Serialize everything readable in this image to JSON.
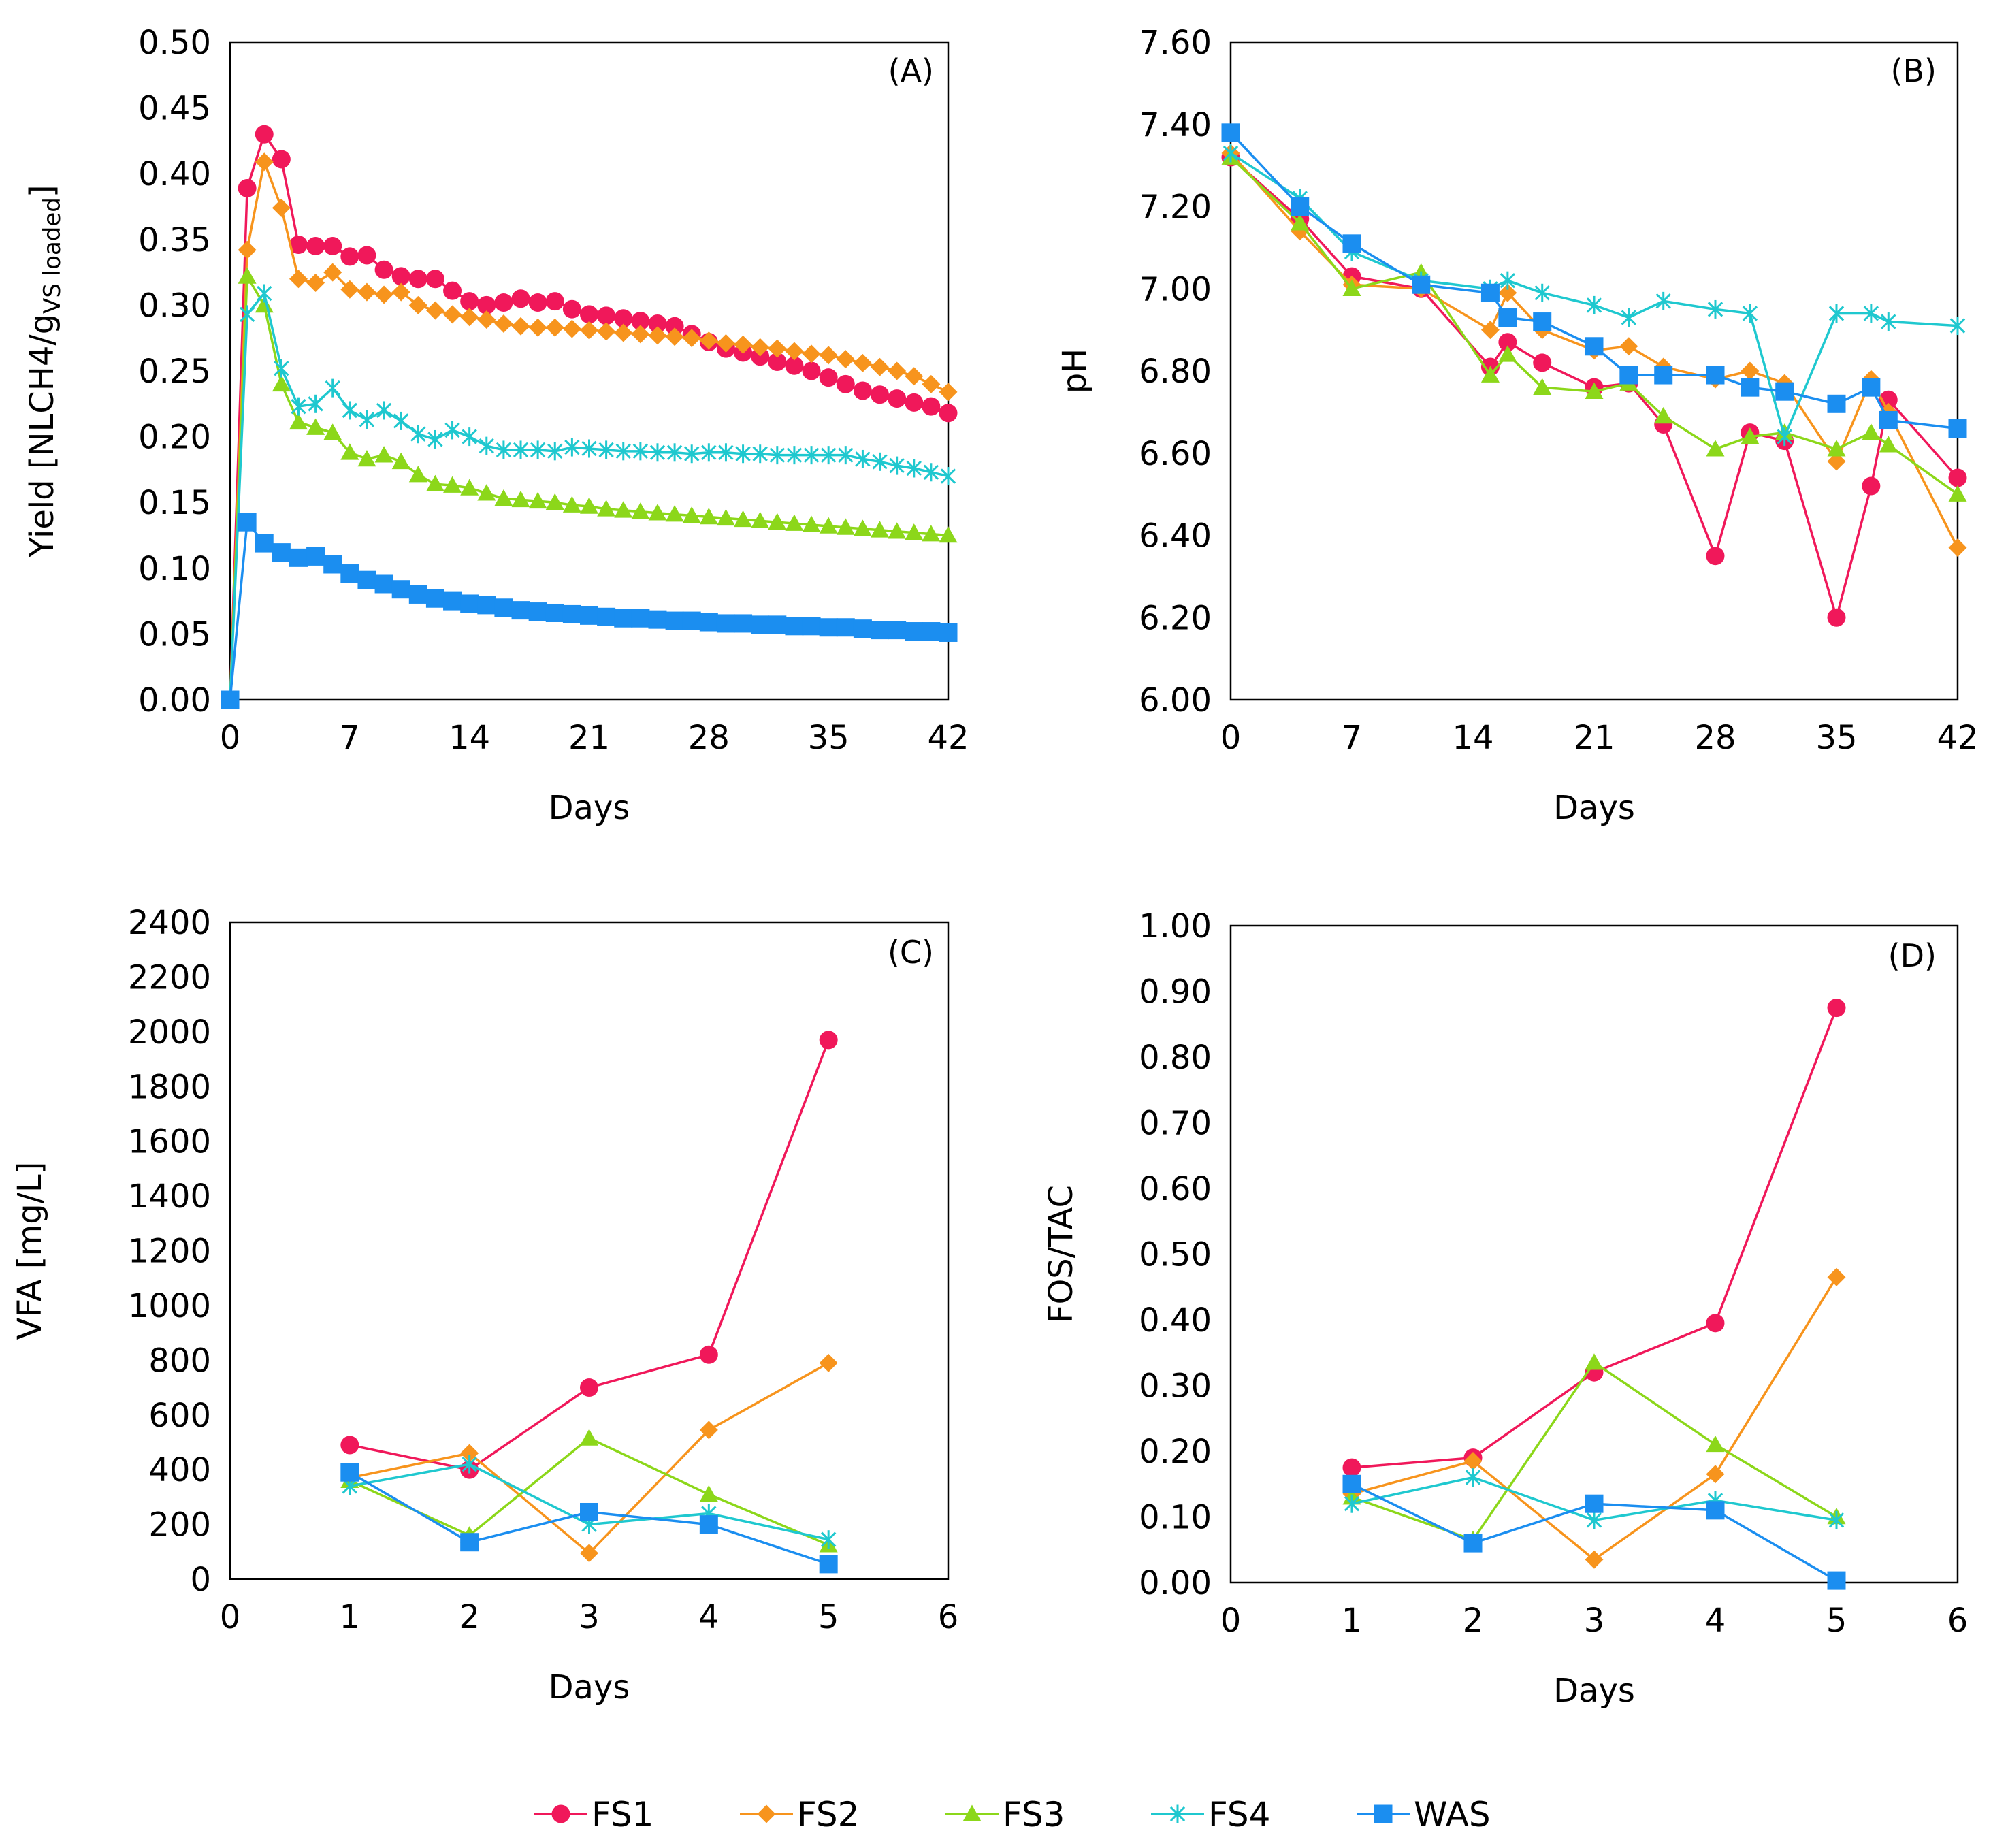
{
  "colors": {
    "FS1": "#f0185a",
    "FS2": "#f7941d",
    "FS3": "#8cd71a",
    "FS4": "#1fc8cf",
    "WAS": "#1b8ef0"
  },
  "legend": [
    {
      "name": "FS1",
      "marker": "circle"
    },
    {
      "name": "FS2",
      "marker": "diamond"
    },
    {
      "name": "FS3",
      "marker": "triangle"
    },
    {
      "name": "FS4",
      "marker": "star"
    },
    {
      "name": "WAS",
      "marker": "square"
    }
  ],
  "chart_data": [
    {
      "id": "A",
      "type": "line",
      "panel_label": "(A)",
      "xlabel": "Days",
      "ylabel_main": "Yield [NLCH4/g",
      "ylabel_sub": "VS loaded",
      "ylabel_end": "]",
      "xlim": [
        0,
        42
      ],
      "ylim": [
        0,
        0.5
      ],
      "xticks": [
        "0",
        "7",
        "14",
        "21",
        "28",
        "35",
        "42"
      ],
      "yticks": [
        "0.00",
        "0.05",
        "0.10",
        "0.15",
        "0.20",
        "0.25",
        "0.30",
        "0.35",
        "0.40",
        "0.45",
        "0.50"
      ],
      "series": [
        {
          "name": "FS1",
          "x": [
            0,
            1,
            2,
            3,
            4,
            5,
            6,
            7,
            8,
            9,
            10,
            11,
            12,
            13,
            14,
            15,
            16,
            17,
            18,
            19,
            20,
            21,
            22,
            23,
            24,
            25,
            26,
            27,
            28,
            29,
            30,
            31,
            32,
            33,
            34,
            35,
            36,
            37,
            38,
            39,
            40,
            41,
            42
          ],
          "y": [
            0,
            0.389,
            0.43,
            0.411,
            0.346,
            0.345,
            0.345,
            0.337,
            0.338,
            0.327,
            0.322,
            0.32,
            0.32,
            0.311,
            0.303,
            0.3,
            0.302,
            0.305,
            0.302,
            0.303,
            0.297,
            0.293,
            0.292,
            0.29,
            0.288,
            0.286,
            0.284,
            0.278,
            0.272,
            0.267,
            0.264,
            0.261,
            0.257,
            0.254,
            0.25,
            0.245,
            0.24,
            0.235,
            0.232,
            0.229,
            0.226,
            0.223,
            0.218
          ]
        },
        {
          "name": "FS2",
          "x": [
            0,
            1,
            2,
            3,
            4,
            5,
            6,
            7,
            8,
            9,
            10,
            11,
            12,
            13,
            14,
            15,
            16,
            17,
            18,
            19,
            20,
            21,
            22,
            23,
            24,
            25,
            26,
            27,
            28,
            29,
            30,
            31,
            32,
            33,
            34,
            35,
            36,
            37,
            38,
            39,
            40,
            41,
            42
          ],
          "y": [
            0,
            0.342,
            0.409,
            0.374,
            0.32,
            0.317,
            0.325,
            0.312,
            0.31,
            0.308,
            0.31,
            0.3,
            0.296,
            0.293,
            0.291,
            0.289,
            0.286,
            0.284,
            0.283,
            0.283,
            0.282,
            0.281,
            0.28,
            0.279,
            0.278,
            0.277,
            0.276,
            0.275,
            0.273,
            0.271,
            0.27,
            0.268,
            0.267,
            0.265,
            0.263,
            0.262,
            0.259,
            0.256,
            0.253,
            0.25,
            0.246,
            0.24,
            0.234
          ]
        },
        {
          "name": "FS3",
          "x": [
            0,
            1,
            2,
            3,
            4,
            5,
            6,
            7,
            8,
            9,
            10,
            11,
            12,
            13,
            14,
            15,
            16,
            17,
            18,
            19,
            20,
            21,
            22,
            23,
            24,
            25,
            26,
            27,
            28,
            29,
            30,
            31,
            32,
            33,
            34,
            35,
            36,
            37,
            38,
            39,
            40,
            41,
            42
          ],
          "y": [
            0,
            0.322,
            0.3,
            0.24,
            0.211,
            0.207,
            0.203,
            0.188,
            0.183,
            0.186,
            0.181,
            0.171,
            0.164,
            0.163,
            0.161,
            0.157,
            0.153,
            0.152,
            0.151,
            0.15,
            0.148,
            0.147,
            0.145,
            0.144,
            0.143,
            0.142,
            0.141,
            0.14,
            0.139,
            0.138,
            0.137,
            0.136,
            0.135,
            0.134,
            0.133,
            0.132,
            0.131,
            0.13,
            0.129,
            0.128,
            0.127,
            0.126,
            0.125
          ]
        },
        {
          "name": "FS4",
          "x": [
            0,
            1,
            2,
            3,
            4,
            5,
            6,
            7,
            8,
            9,
            10,
            11,
            12,
            13,
            14,
            15,
            16,
            17,
            18,
            19,
            20,
            21,
            22,
            23,
            24,
            25,
            26,
            27,
            28,
            29,
            30,
            31,
            32,
            33,
            34,
            35,
            36,
            37,
            38,
            39,
            40,
            41,
            42
          ],
          "y": [
            0,
            0.293,
            0.309,
            0.252,
            0.223,
            0.225,
            0.237,
            0.22,
            0.213,
            0.22,
            0.212,
            0.202,
            0.198,
            0.205,
            0.2,
            0.193,
            0.19,
            0.19,
            0.19,
            0.189,
            0.192,
            0.191,
            0.19,
            0.189,
            0.189,
            0.188,
            0.188,
            0.187,
            0.188,
            0.188,
            0.187,
            0.187,
            0.186,
            0.186,
            0.186,
            0.186,
            0.186,
            0.183,
            0.181,
            0.178,
            0.176,
            0.173,
            0.17
          ]
        },
        {
          "name": "WAS",
          "x": [
            0,
            1,
            2,
            3,
            4,
            5,
            6,
            7,
            8,
            9,
            10,
            11,
            12,
            13,
            14,
            15,
            16,
            17,
            18,
            19,
            20,
            21,
            22,
            23,
            24,
            25,
            26,
            27,
            28,
            29,
            30,
            31,
            32,
            33,
            34,
            35,
            36,
            37,
            38,
            39,
            40,
            41,
            42
          ],
          "y": [
            0,
            0.135,
            0.119,
            0.112,
            0.108,
            0.109,
            0.103,
            0.096,
            0.091,
            0.088,
            0.084,
            0.08,
            0.077,
            0.075,
            0.073,
            0.072,
            0.07,
            0.068,
            0.067,
            0.066,
            0.065,
            0.064,
            0.063,
            0.062,
            0.062,
            0.061,
            0.06,
            0.06,
            0.059,
            0.058,
            0.058,
            0.057,
            0.057,
            0.056,
            0.056,
            0.055,
            0.055,
            0.054,
            0.053,
            0.053,
            0.052,
            0.052,
            0.051
          ]
        }
      ]
    },
    {
      "id": "B",
      "type": "line",
      "panel_label": "(B)",
      "xlabel": "Days",
      "ylabel_main": "pH",
      "ylabel_sub": "",
      "ylabel_end": "",
      "xlim": [
        0,
        42
      ],
      "ylim": [
        6.0,
        7.6
      ],
      "xticks": [
        "0",
        "7",
        "14",
        "21",
        "28",
        "35",
        "42"
      ],
      "yticks": [
        "6.00",
        "6.20",
        "6.40",
        "6.60",
        "6.80",
        "7.00",
        "7.20",
        "7.40",
        "7.60"
      ],
      "series": [
        {
          "name": "FS1",
          "x": [
            0,
            4,
            7,
            11,
            15,
            16,
            18,
            21,
            23,
            25,
            28,
            30,
            32,
            35,
            37,
            38,
            42
          ],
          "y": [
            7.32,
            7.17,
            7.03,
            7.0,
            6.81,
            6.87,
            6.82,
            6.76,
            6.77,
            6.67,
            6.35,
            6.65,
            6.63,
            6.2,
            6.52,
            6.73,
            6.54
          ]
        },
        {
          "name": "FS2",
          "x": [
            0,
            4,
            7,
            11,
            15,
            16,
            18,
            21,
            23,
            25,
            28,
            30,
            32,
            35,
            37,
            38,
            42
          ],
          "y": [
            7.33,
            7.14,
            7.01,
            7.0,
            6.9,
            6.99,
            6.9,
            6.85,
            6.86,
            6.81,
            6.78,
            6.8,
            6.77,
            6.58,
            6.78,
            6.7,
            6.37
          ]
        },
        {
          "name": "FS3",
          "x": [
            0,
            4,
            7,
            11,
            15,
            16,
            18,
            21,
            23,
            25,
            28,
            30,
            32,
            35,
            37,
            38,
            42
          ],
          "y": [
            7.32,
            7.16,
            7.0,
            7.04,
            6.79,
            6.84,
            6.76,
            6.75,
            6.77,
            6.69,
            6.61,
            6.64,
            6.65,
            6.61,
            6.65,
            6.62,
            6.5
          ]
        },
        {
          "name": "FS4",
          "x": [
            0,
            4,
            7,
            11,
            15,
            16,
            18,
            21,
            23,
            25,
            28,
            30,
            32,
            35,
            37,
            38,
            42
          ],
          "y": [
            7.33,
            7.22,
            7.09,
            7.02,
            7.0,
            7.02,
            6.99,
            6.96,
            6.93,
            6.97,
            6.95,
            6.94,
            6.64,
            6.94,
            6.94,
            6.92,
            6.91
          ]
        },
        {
          "name": "WAS",
          "x": [
            0,
            4,
            7,
            11,
            15,
            16,
            18,
            21,
            23,
            25,
            28,
            30,
            32,
            35,
            37,
            38,
            42
          ],
          "y": [
            7.38,
            7.2,
            7.11,
            7.01,
            6.99,
            6.93,
            6.92,
            6.86,
            6.79,
            6.79,
            6.79,
            6.76,
            6.75,
            6.72,
            6.76,
            6.68,
            6.66
          ]
        }
      ]
    },
    {
      "id": "C",
      "type": "line",
      "panel_label": "(C)",
      "xlabel": "Days",
      "ylabel_main": "VFA [mg/L]",
      "ylabel_sub": "",
      "ylabel_end": "",
      "xlim": [
        0,
        6
      ],
      "ylim": [
        0,
        2400
      ],
      "xticks": [
        "0",
        "1",
        "2",
        "3",
        "4",
        "5",
        "6"
      ],
      "yticks": [
        "0",
        "200",
        "400",
        "600",
        "800",
        "1000",
        "1200",
        "1400",
        "1600",
        "1800",
        "2000",
        "2200",
        "2400"
      ],
      "series": [
        {
          "name": "FS1",
          "x": [
            1,
            2,
            3,
            4,
            5
          ],
          "y": [
            490,
            400,
            700,
            820,
            1970
          ]
        },
        {
          "name": "FS2",
          "x": [
            1,
            2,
            3,
            4,
            5
          ],
          "y": [
            370,
            460,
            95,
            545,
            790
          ]
        },
        {
          "name": "FS3",
          "x": [
            1,
            2,
            3,
            4,
            5
          ],
          "y": [
            360,
            160,
            515,
            310,
            125
          ]
        },
        {
          "name": "FS4",
          "x": [
            1,
            2,
            3,
            4,
            5
          ],
          "y": [
            340,
            420,
            200,
            240,
            145
          ]
        },
        {
          "name": "WAS",
          "x": [
            1,
            2,
            3,
            4,
            5
          ],
          "y": [
            390,
            135,
            245,
            200,
            55
          ]
        }
      ]
    },
    {
      "id": "D",
      "type": "line",
      "panel_label": "(D)",
      "xlabel": "Days",
      "ylabel_main": "FOS/TAC",
      "ylabel_sub": "",
      "ylabel_end": "",
      "xlim": [
        0,
        6
      ],
      "ylim": [
        0,
        1.0
      ],
      "xticks": [
        "0",
        "1",
        "2",
        "3",
        "4",
        "5",
        "6"
      ],
      "yticks": [
        "0.00",
        "0.10",
        "0.20",
        "0.30",
        "0.40",
        "0.50",
        "0.60",
        "0.70",
        "0.80",
        "0.90",
        "1.00"
      ],
      "series": [
        {
          "name": "FS1",
          "x": [
            1,
            2,
            3,
            4,
            5
          ],
          "y": [
            0.175,
            0.19,
            0.32,
            0.395,
            0.875
          ]
        },
        {
          "name": "FS2",
          "x": [
            1,
            2,
            3,
            4,
            5
          ],
          "y": [
            0.135,
            0.185,
            0.035,
            0.165,
            0.465
          ]
        },
        {
          "name": "FS3",
          "x": [
            1,
            2,
            3,
            4,
            5
          ],
          "y": [
            0.13,
            0.065,
            0.335,
            0.21,
            0.1
          ]
        },
        {
          "name": "FS4",
          "x": [
            1,
            2,
            3,
            4,
            5
          ],
          "y": [
            0.12,
            0.16,
            0.095,
            0.125,
            0.095
          ]
        },
        {
          "name": "WAS",
          "x": [
            1,
            2,
            3,
            4,
            5
          ],
          "y": [
            0.15,
            0.06,
            0.12,
            0.11,
            0.003
          ]
        }
      ]
    }
  ]
}
